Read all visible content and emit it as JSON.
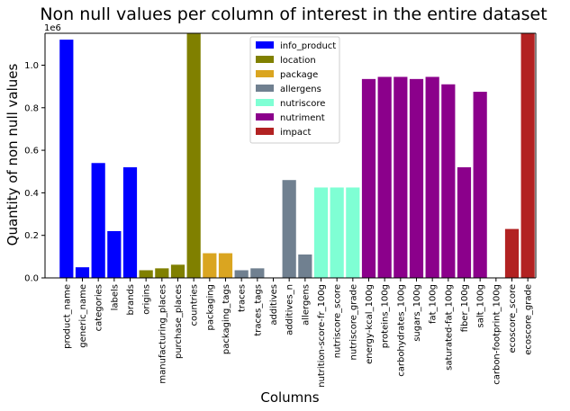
{
  "chart_data": {
    "type": "bar",
    "title": "Non null values per column of interest in the entire dataset",
    "xlabel": "Columns",
    "ylabel": "Quantity of non null values",
    "y_scale_label": "1e6",
    "ylim": [
      0,
      1.15
    ],
    "yticks": [
      "0.0",
      "0.2",
      "0.4",
      "0.6",
      "0.8",
      "1.0"
    ],
    "grid": false,
    "legend_position": "top-center",
    "groups": [
      {
        "name": "info_product",
        "color": "#0000ff"
      },
      {
        "name": "location",
        "color": "#808000"
      },
      {
        "name": "package",
        "color": "#daa520"
      },
      {
        "name": "allergens",
        "color": "#708090"
      },
      {
        "name": "nutriscore",
        "color": "#7fffd4"
      },
      {
        "name": "nutriment",
        "color": "#8b008b"
      },
      {
        "name": "impact",
        "color": "#b22222"
      }
    ],
    "bars": [
      {
        "label": "product_name",
        "value": 1.12,
        "group": "info_product"
      },
      {
        "label": "generic_name",
        "value": 0.05,
        "group": "info_product"
      },
      {
        "label": "categories",
        "value": 0.54,
        "group": "info_product"
      },
      {
        "label": "labels",
        "value": 0.22,
        "group": "info_product"
      },
      {
        "label": "brands",
        "value": 0.52,
        "group": "info_product"
      },
      {
        "label": "origins",
        "value": 0.036,
        "group": "location"
      },
      {
        "label": "manufacturing_places",
        "value": 0.045,
        "group": "location"
      },
      {
        "label": "purchase_places",
        "value": 0.062,
        "group": "location"
      },
      {
        "label": "countries",
        "value": 1.15,
        "group": "location"
      },
      {
        "label": "packaging",
        "value": 0.116,
        "group": "package"
      },
      {
        "label": "packaging_tags",
        "value": 0.116,
        "group": "package"
      },
      {
        "label": "traces",
        "value": 0.036,
        "group": "allergens"
      },
      {
        "label": "traces_tags",
        "value": 0.045,
        "group": "allergens"
      },
      {
        "label": "additives",
        "value": 0.0,
        "group": "allergens"
      },
      {
        "label": "additives_n",
        "value": 0.46,
        "group": "allergens"
      },
      {
        "label": "allergens",
        "value": 0.11,
        "group": "allergens"
      },
      {
        "label": "nutrition-score-fr_100g",
        "value": 0.425,
        "group": "nutriscore"
      },
      {
        "label": "nutriscore_score",
        "value": 0.425,
        "group": "nutriscore"
      },
      {
        "label": "nutriscore_grade",
        "value": 0.425,
        "group": "nutriscore"
      },
      {
        "label": "energy-kcal_100g",
        "value": 0.935,
        "group": "nutriment"
      },
      {
        "label": "proteins_100g",
        "value": 0.945,
        "group": "nutriment"
      },
      {
        "label": "carbohydrates_100g",
        "value": 0.945,
        "group": "nutriment"
      },
      {
        "label": "sugars_100g",
        "value": 0.935,
        "group": "nutriment"
      },
      {
        "label": "fat_100g",
        "value": 0.945,
        "group": "nutriment"
      },
      {
        "label": "saturated-fat_100g",
        "value": 0.91,
        "group": "nutriment"
      },
      {
        "label": "fiber_100g",
        "value": 0.52,
        "group": "nutriment"
      },
      {
        "label": "salt_100g",
        "value": 0.875,
        "group": "nutriment"
      },
      {
        "label": "carbon-footprint_100g",
        "value": 0.0,
        "group": "impact"
      },
      {
        "label": "ecoscore_score",
        "value": 0.23,
        "group": "impact"
      },
      {
        "label": "ecoscore_grade",
        "value": 1.15,
        "group": "impact"
      }
    ]
  }
}
